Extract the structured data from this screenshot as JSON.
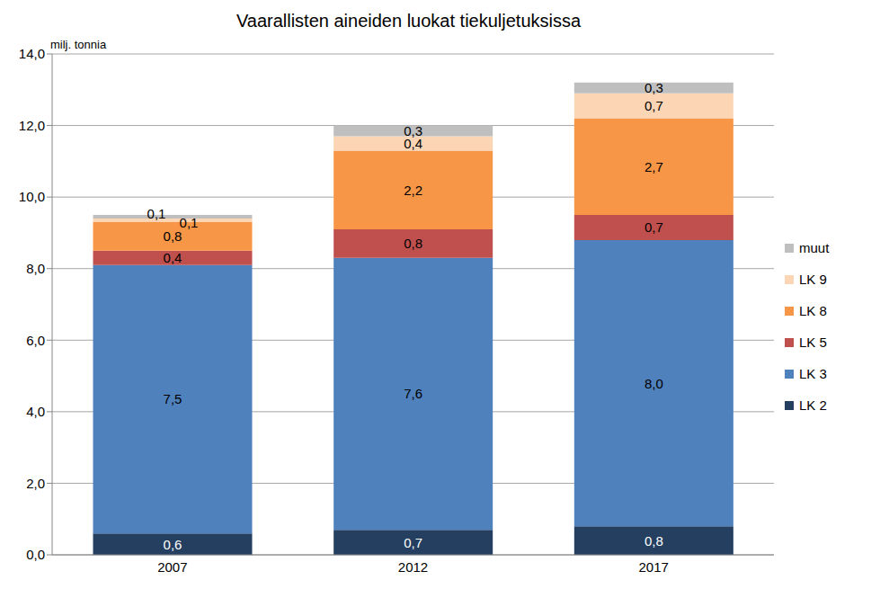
{
  "chart_data": {
    "type": "bar",
    "title": "Vaarallisten aineiden luokat tiekuljetuksissa",
    "y_label": "milj. tonnia",
    "categories": [
      "2007",
      "2012",
      "2017"
    ],
    "series": [
      {
        "name": "LK 2",
        "color": "#243F60",
        "values": [
          0.6,
          0.7,
          0.8
        ],
        "value_labels": [
          "0,6",
          "0,7",
          "0,8"
        ]
      },
      {
        "name": "LK 3",
        "color": "#4F81BD",
        "values": [
          7.5,
          7.6,
          8.0
        ],
        "value_labels": [
          "7,5",
          "7,6",
          "8,0"
        ]
      },
      {
        "name": "LK 5",
        "color": "#C0504D",
        "values": [
          0.4,
          0.8,
          0.7
        ],
        "value_labels": [
          "0,4",
          "0,8",
          "0,7"
        ]
      },
      {
        "name": "LK 8",
        "color": "#F79646",
        "values": [
          0.8,
          2.2,
          2.7
        ],
        "value_labels": [
          "0,8",
          "2,2",
          "2,7"
        ]
      },
      {
        "name": "LK 9",
        "color": "#FCD5B5",
        "values": [
          0.1,
          0.4,
          0.7
        ],
        "value_labels": [
          "0,1",
          "0,4",
          "0,7"
        ]
      },
      {
        "name": "muut",
        "color": "#BFBFBF",
        "values": [
          0.1,
          0.3,
          0.3
        ],
        "value_labels": [
          "0,1",
          "0,3",
          "0,3"
        ]
      }
    ],
    "ylim": [
      0,
      14
    ],
    "yticks": [
      {
        "value": 0,
        "label": "0,0"
      },
      {
        "value": 2,
        "label": "2,0"
      },
      {
        "value": 4,
        "label": "4,0"
      },
      {
        "value": 6,
        "label": "6,0"
      },
      {
        "value": 8,
        "label": "8,0"
      },
      {
        "value": 10,
        "label": "10,0"
      },
      {
        "value": 12,
        "label": "12,0"
      },
      {
        "value": 14,
        "label": "14,0"
      }
    ],
    "grid": true,
    "stacked": true,
    "data_labels": true,
    "legend": "right"
  }
}
